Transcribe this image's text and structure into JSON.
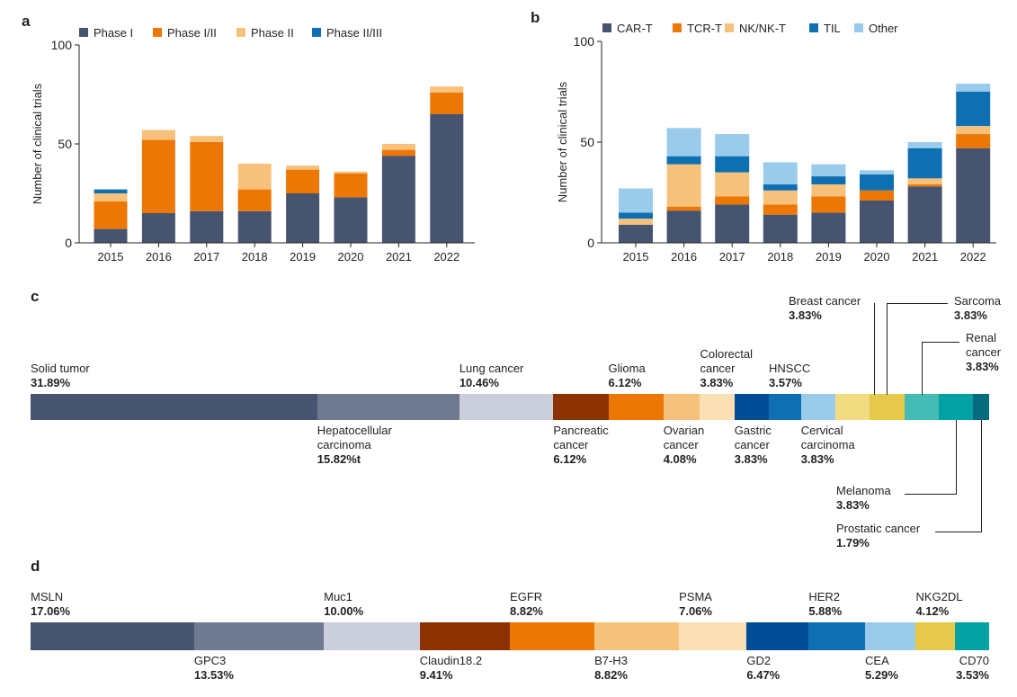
{
  "panels": {
    "a": "a",
    "b": "b",
    "c": "c",
    "d": "d"
  },
  "chart_data": [
    {
      "id": "a",
      "type": "bar",
      "stacked": true,
      "ylabel": "Number of clinical trials",
      "xlabel": "",
      "ylim": [
        0,
        100
      ],
      "yticks": [
        0,
        50,
        100
      ],
      "grid": false,
      "legend": "top",
      "categories": [
        "2015",
        "2016",
        "2017",
        "2018",
        "2019",
        "2020",
        "2021",
        "2022"
      ],
      "series": [
        {
          "name": "Phase I",
          "color": "#46546f",
          "values": [
            7,
            15,
            16,
            16,
            25,
            23,
            44,
            65
          ]
        },
        {
          "name": "Phase I/II",
          "color": "#ed7703",
          "values": [
            14,
            37,
            35,
            11,
            12,
            12,
            3,
            11
          ]
        },
        {
          "name": "Phase II",
          "color": "#f6c27b",
          "values": [
            4,
            5,
            3,
            13,
            2,
            1,
            3,
            3
          ]
        },
        {
          "name": "Phase II/III",
          "color": "#0e6fb3",
          "values": [
            2,
            0,
            0,
            0,
            0,
            0,
            0,
            0
          ]
        }
      ]
    },
    {
      "id": "b",
      "type": "bar",
      "stacked": true,
      "ylabel": "Number of clinical trials",
      "xlabel": "",
      "ylim": [
        0,
        100
      ],
      "yticks": [
        0,
        50,
        100
      ],
      "grid": false,
      "legend": "top",
      "categories": [
        "2015",
        "2016",
        "2017",
        "2018",
        "2019",
        "2020",
        "2021",
        "2022"
      ],
      "series": [
        {
          "name": "CAR-T",
          "color": "#46546f",
          "values": [
            9,
            16,
            19,
            14,
            15,
            21,
            28,
            47
          ]
        },
        {
          "name": "TCR-T",
          "color": "#ed7703",
          "values": [
            0,
            2,
            4,
            5,
            8,
            5,
            1,
            7
          ]
        },
        {
          "name": "NK/NK-T",
          "color": "#f6c27b",
          "values": [
            3,
            21,
            12,
            7,
            6,
            0,
            3,
            4
          ]
        },
        {
          "name": "TIL",
          "color": "#0e6fb3",
          "values": [
            3,
            4,
            8,
            3,
            4,
            8,
            15,
            17
          ]
        },
        {
          "name": "Other",
          "color": "#9acbeb",
          "values": [
            12,
            14,
            11,
            11,
            6,
            2,
            3,
            4
          ]
        }
      ]
    },
    {
      "id": "c",
      "type": "bar",
      "orientation": "horizontal-stacked",
      "segments": [
        {
          "name": "Solid tumor",
          "value": "31.89%",
          "color": "#46546f"
        },
        {
          "name": "Hepatocellular carcinoma",
          "value": "15.82%t",
          "color": "#6f7a90"
        },
        {
          "name": "Lung cancer",
          "value": "10.46%",
          "color": "#cbcfdb"
        },
        {
          "name": "Pancreatic cancer",
          "value": "6.12%",
          "color": "#8b3200"
        },
        {
          "name": "Glioma",
          "value": "6.12%",
          "color": "#ed7703"
        },
        {
          "name": "Ovarian cancer",
          "value": "4.08%",
          "color": "#f6c27b"
        },
        {
          "name": "Colorectal cancer",
          "value": "3.83%",
          "color": "#fbdfb5"
        },
        {
          "name": "Gastric cancer",
          "value": "3.83%",
          "color": "#024d96"
        },
        {
          "name": "HNSCC",
          "value": "3.57%",
          "color": "#0e6fb3"
        },
        {
          "name": "Cervical carcinoma",
          "value": "3.83%",
          "color": "#9acbeb"
        },
        {
          "name": "Breast cancer",
          "value": "3.83%",
          "color": "#f2dc82"
        },
        {
          "name": "Sarcoma",
          "value": "3.83%",
          "color": "#e6c84a"
        },
        {
          "name": "Renal cancer",
          "value": "3.83%",
          "color": "#45bbb5"
        },
        {
          "name": "Melanoma",
          "value": "3.83%",
          "color": "#03a0a4"
        },
        {
          "name": "Prostatic cancer",
          "value": "1.79%",
          "color": "#066c7d"
        }
      ]
    },
    {
      "id": "d",
      "type": "bar",
      "orientation": "horizontal-stacked",
      "segments": [
        {
          "name": "MSLN",
          "value": "17.06%",
          "color": "#46546f"
        },
        {
          "name": "GPC3",
          "value": "13.53%",
          "color": "#6f7a90"
        },
        {
          "name": "Muc1",
          "value": "10.00%",
          "color": "#cbcfdb"
        },
        {
          "name": "Claudin18.2",
          "value": "9.41%",
          "color": "#8b3200"
        },
        {
          "name": "EGFR",
          "value": "8.82%",
          "color": "#ed7703"
        },
        {
          "name": "B7-H3",
          "value": "8.82%",
          "color": "#f6c27b"
        },
        {
          "name": "PSMA",
          "value": "7.06%",
          "color": "#fbdfb5"
        },
        {
          "name": "GD2",
          "value": "6.47%",
          "color": "#024d96"
        },
        {
          "name": "HER2",
          "value": "5.88%",
          "color": "#0e6fb3"
        },
        {
          "name": "CEA",
          "value": "5.29%",
          "color": "#9acbeb"
        },
        {
          "name": "NKG2DL",
          "value": "4.12%",
          "color": "#e6c84a"
        },
        {
          "name": "CD70",
          "value": "3.53%",
          "color": "#03a0a4"
        }
      ]
    }
  ]
}
